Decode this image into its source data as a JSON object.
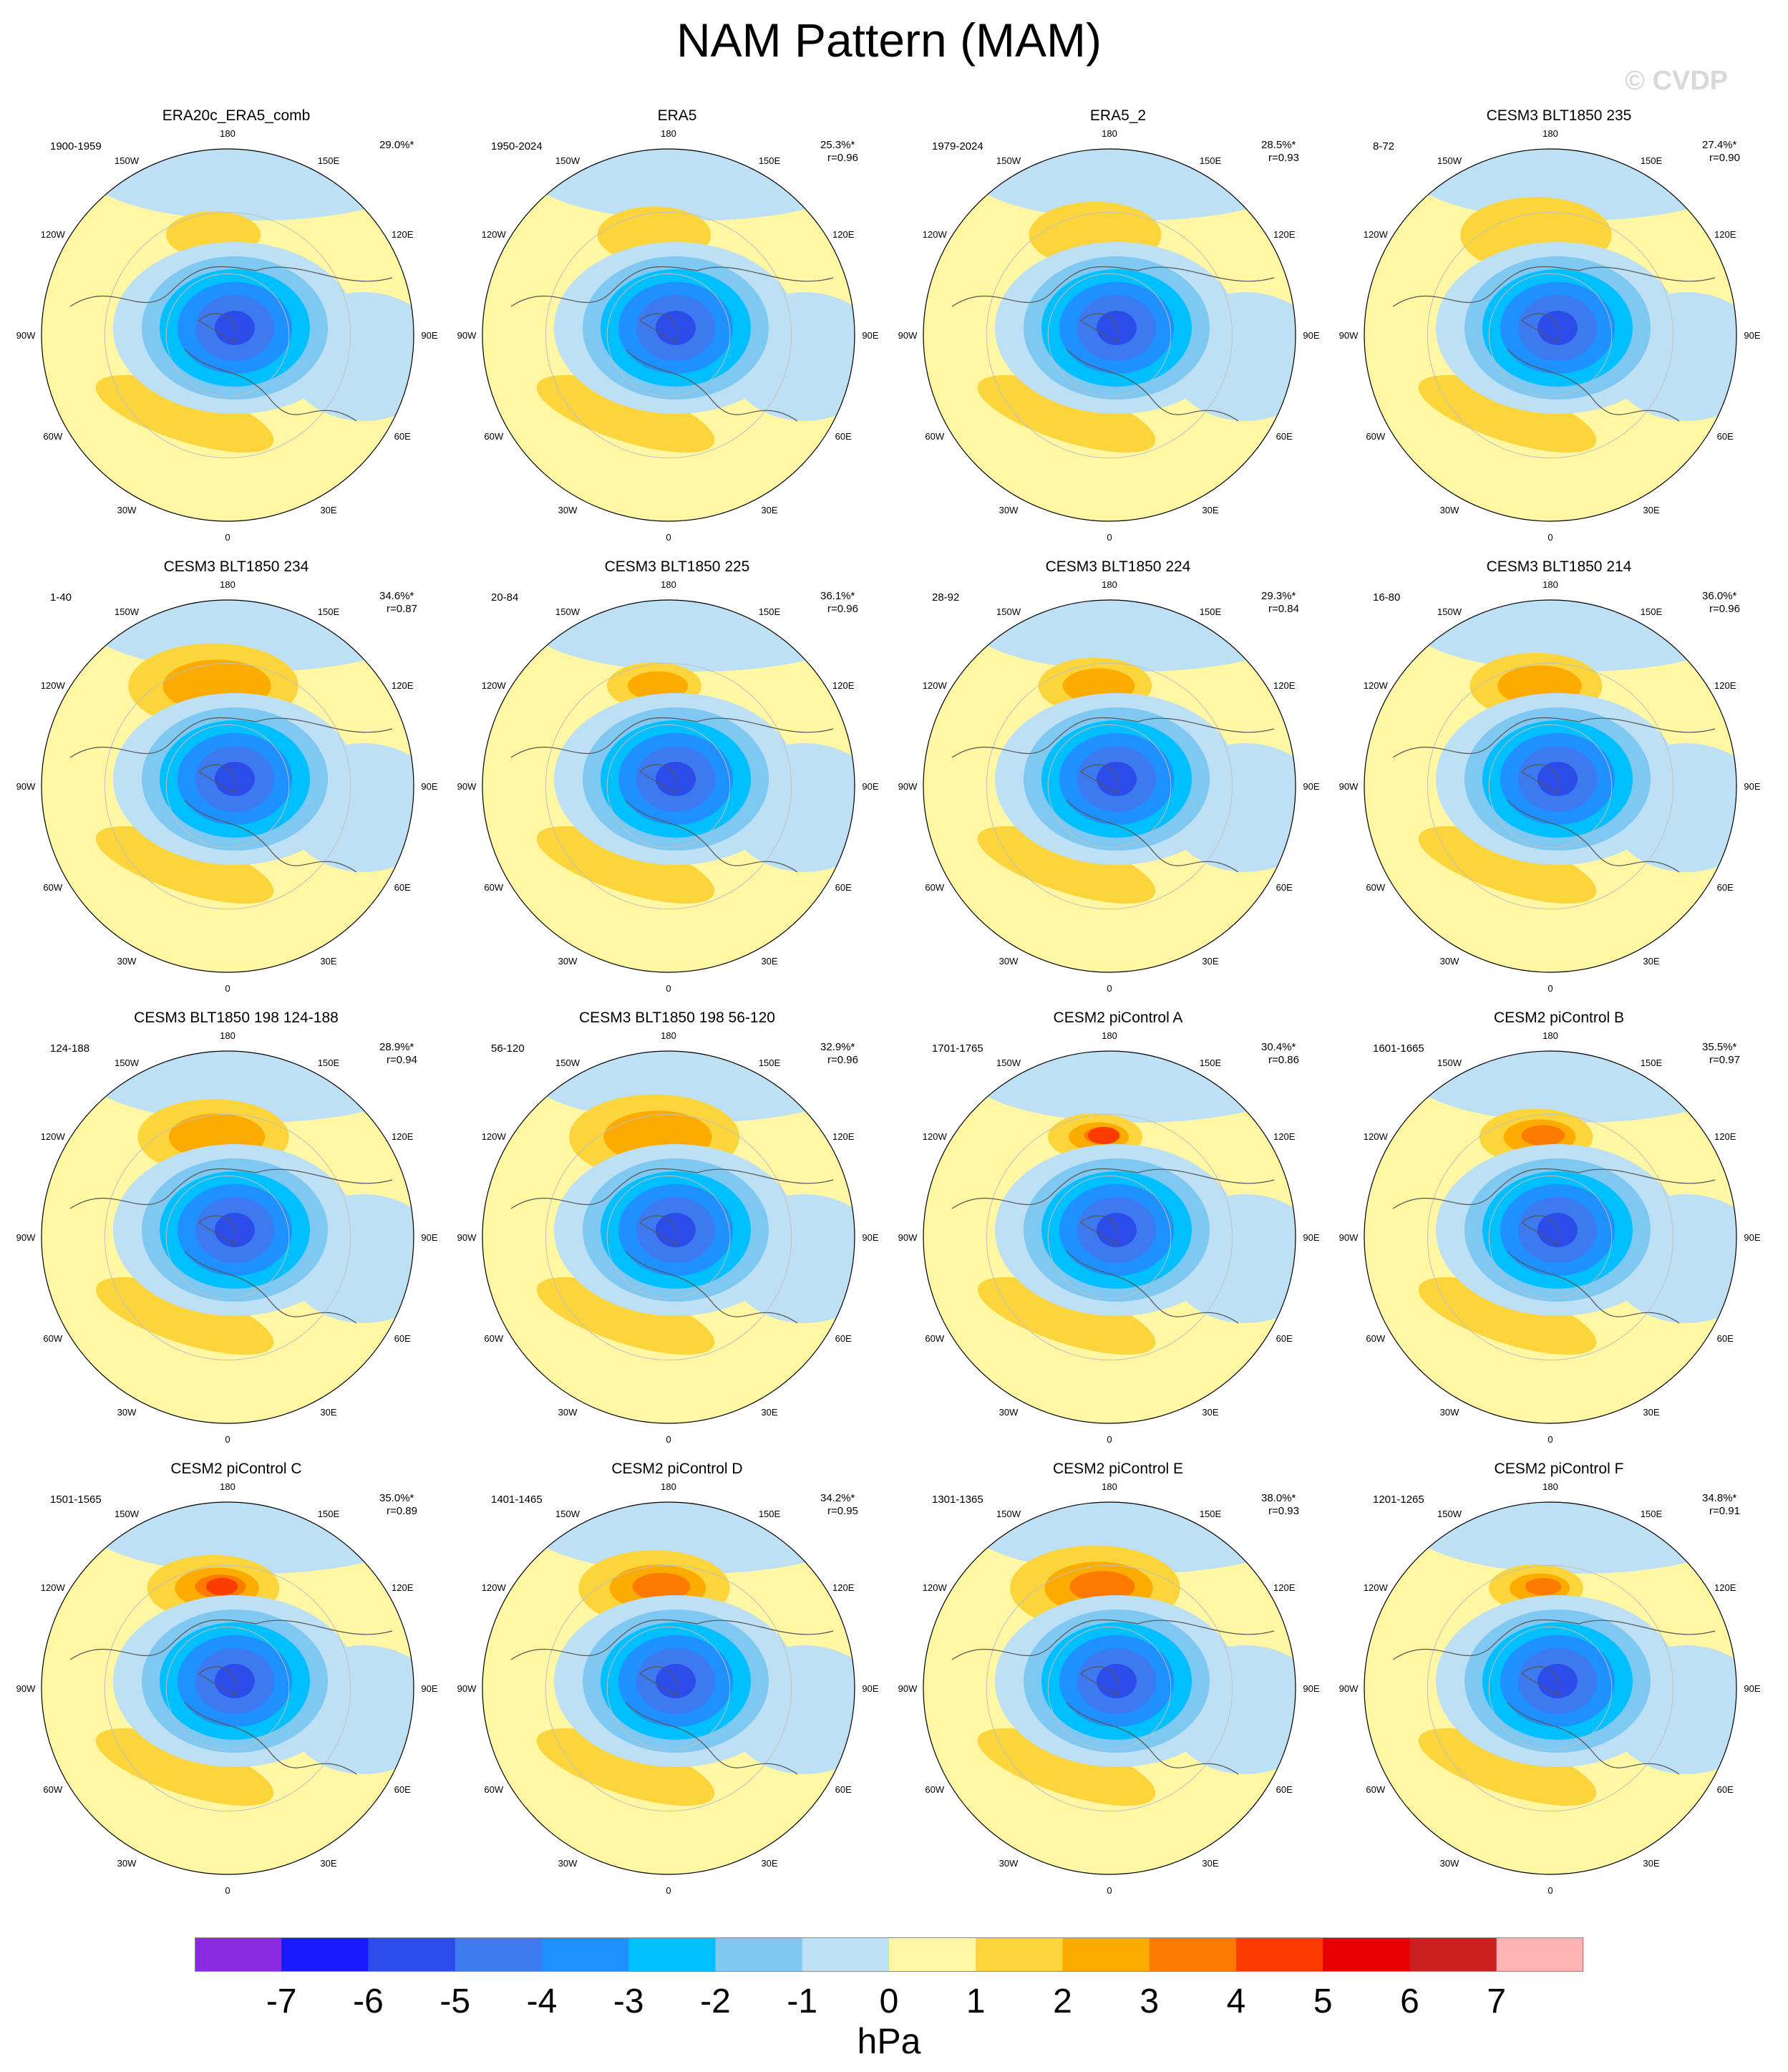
{
  "title": "NAM Pattern (MAM)",
  "watermark": "© CVDP",
  "units": "hPa",
  "colorbar": {
    "levels": [
      "-7",
      "-6",
      "-5",
      "-4",
      "-3",
      "-2",
      "-1",
      "0",
      "1",
      "2",
      "3",
      "4",
      "5",
      "6",
      "7"
    ],
    "colors": [
      "#8a2be2",
      "#1a1aff",
      "#2b4ce8",
      "#3d7af0",
      "#1e90ff",
      "#00bfff",
      "#7ec8f2",
      "#bde0f5",
      "#fff7a3",
      "#fcd43c",
      "#fcac00",
      "#fc7a00",
      "#fc3b00",
      "#e60000",
      "#cc1f1f",
      "#ffb3b3"
    ]
  },
  "map_labels": {
    "lon_180": "180",
    "lon_150w": "150W",
    "lon_150e": "150E",
    "lon_120w": "120W",
    "lon_120e": "120E",
    "lon_90w": "90W",
    "lon_90e": "90E",
    "lon_60w": "60W",
    "lon_60e": "60E",
    "lon_30w": "30W",
    "lon_30e": "30E",
    "lon_0": "0"
  },
  "chart_data": {
    "type": "heatmap",
    "title": "NAM Pattern (MAM)",
    "units": "hPa",
    "projection": "polar stereographic, Northern Hemisphere",
    "color_levels": [
      -7,
      -6,
      -5,
      -4,
      -3,
      -2,
      -1,
      0,
      1,
      2,
      3,
      4,
      5,
      6,
      7
    ],
    "panels": [
      {
        "title": "ERA20c_ERA5_comb",
        "years": "1900-1959",
        "pct": "29.0%*",
        "r": ""
      },
      {
        "title": "ERA5",
        "years": "1950-2024",
        "pct": "25.3%*",
        "r": "r=0.96"
      },
      {
        "title": "ERA5_2",
        "years": "1979-2024",
        "pct": "28.5%*",
        "r": "r=0.93"
      },
      {
        "title": "CESM3 BLT1850 235",
        "years": "8-72",
        "pct": "27.4%*",
        "r": "r=0.90"
      },
      {
        "title": "CESM3 BLT1850 234",
        "years": "1-40",
        "pct": "34.6%*",
        "r": "r=0.87"
      },
      {
        "title": "CESM3 BLT1850 225",
        "years": "20-84",
        "pct": "36.1%*",
        "r": "r=0.96"
      },
      {
        "title": "CESM3 BLT1850 224",
        "years": "28-92",
        "pct": "29.3%*",
        "r": "r=0.84"
      },
      {
        "title": "CESM3 BLT1850 214",
        "years": "16-80",
        "pct": "36.0%*",
        "r": "r=0.96"
      },
      {
        "title": "CESM3 BLT1850 198 124-188",
        "years": "124-188",
        "pct": "28.9%*",
        "r": "r=0.94"
      },
      {
        "title": "CESM3 BLT1850 198 56-120",
        "years": "56-120",
        "pct": "32.9%*",
        "r": "r=0.96"
      },
      {
        "title": "CESM2 piControl A",
        "years": "1701-1765",
        "pct": "30.4%*",
        "r": "r=0.86"
      },
      {
        "title": "CESM2 piControl B",
        "years": "1601-1665",
        "pct": "35.5%*",
        "r": "r=0.97"
      },
      {
        "title": "CESM2 piControl C",
        "years": "1501-1565",
        "pct": "35.0%*",
        "r": "r=0.89"
      },
      {
        "title": "CESM2 piControl D",
        "years": "1401-1465",
        "pct": "34.2%*",
        "r": "r=0.95"
      },
      {
        "title": "CESM2 piControl E",
        "years": "1301-1365",
        "pct": "38.0%*",
        "r": "r=0.93"
      },
      {
        "title": "CESM2 piControl F",
        "years": "1201-1265",
        "pct": "34.8%*",
        "r": "r=0.91"
      }
    ]
  }
}
